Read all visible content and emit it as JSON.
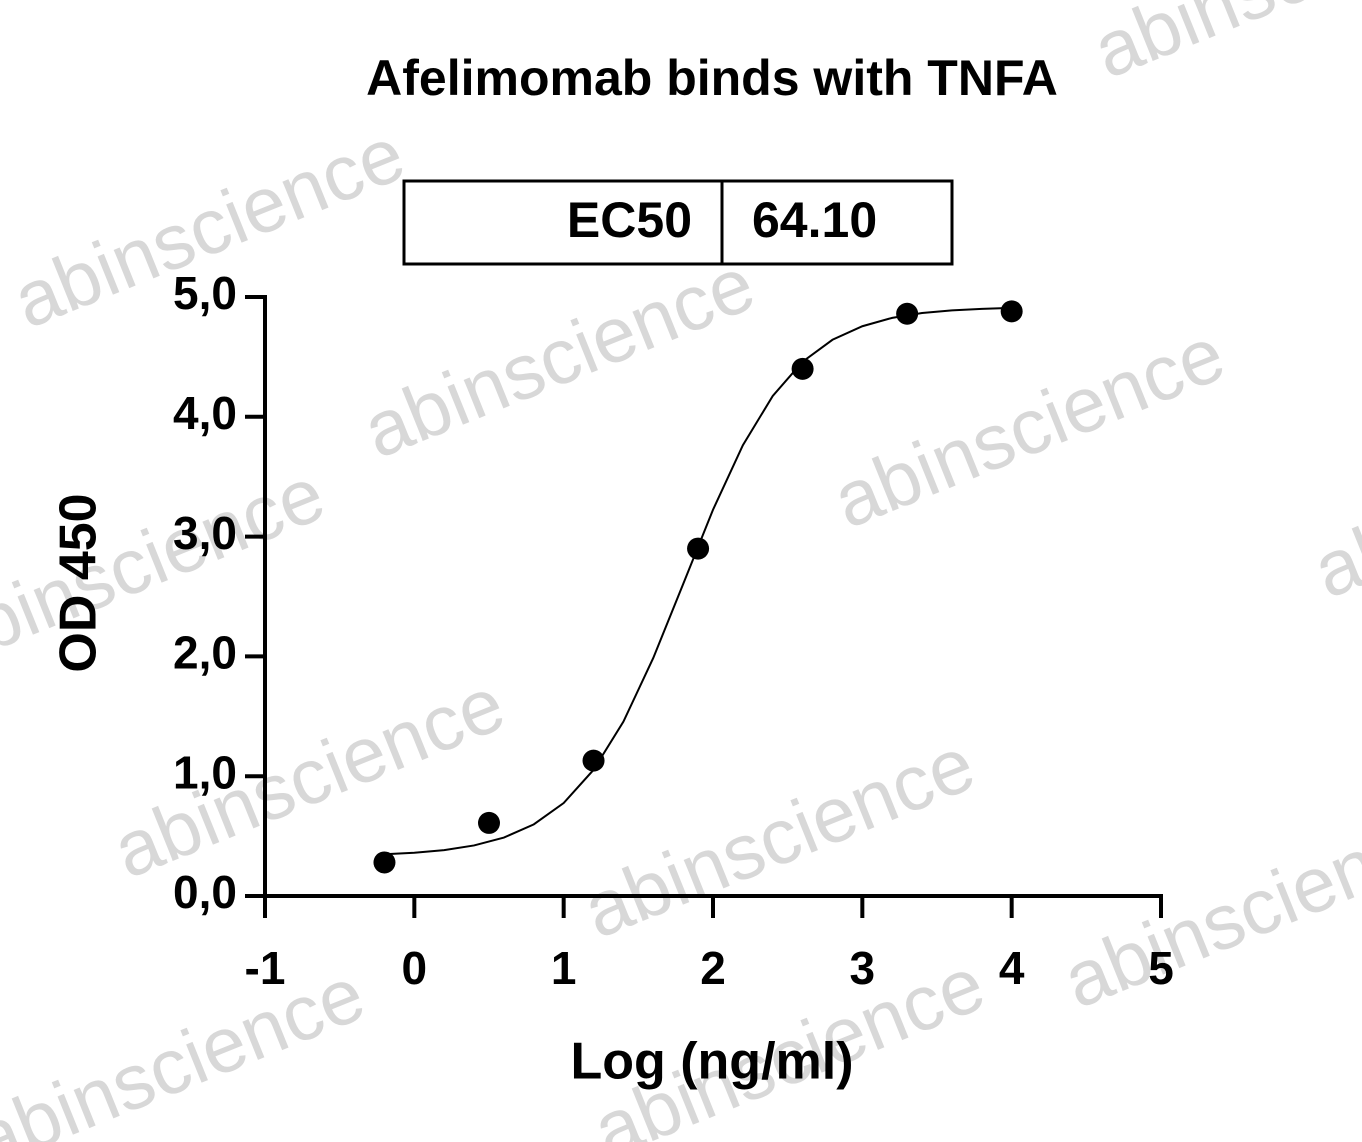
{
  "chart_data": {
    "type": "scatter",
    "title": "Afelimomab binds with TNFA",
    "xlabel": "Log (ng/ml)",
    "ylabel": "OD 450",
    "ec50_table": {
      "label": "EC50",
      "value": "64.10"
    },
    "watermark": "abinscience",
    "xlim": [
      -1,
      5
    ],
    "ylim": [
      0,
      5
    ],
    "xticks": [
      -1,
      0,
      1,
      2,
      3,
      4,
      5
    ],
    "yticks": [
      {
        "value": 0,
        "label": "0,0"
      },
      {
        "value": 1,
        "label": "1,0"
      },
      {
        "value": 2,
        "label": "2,0"
      },
      {
        "value": 3,
        "label": "3,0"
      },
      {
        "value": 4,
        "label": "4,0"
      },
      {
        "value": 5,
        "label": "5,0"
      }
    ],
    "color": "#000000",
    "points": {
      "x": [
        -0.2,
        0.5,
        1.2,
        1.9,
        2.6,
        3.3,
        4.0
      ],
      "values": [
        0.28,
        0.61,
        1.13,
        2.9,
        4.4,
        4.86,
        4.88
      ]
    },
    "fit": {
      "x": [
        -0.2,
        0.0,
        0.2,
        0.4,
        0.6,
        0.8,
        1.0,
        1.2,
        1.4,
        1.6,
        1.8,
        2.0,
        2.2,
        2.4,
        2.6,
        2.8,
        3.0,
        3.2,
        3.4,
        3.6,
        3.8,
        4.0
      ],
      "values": [
        0.348,
        0.361,
        0.383,
        0.422,
        0.488,
        0.598,
        0.776,
        1.053,
        1.455,
        1.987,
        2.603,
        3.224,
        3.763,
        4.174,
        4.46,
        4.643,
        4.756,
        4.826,
        4.866,
        4.888,
        4.901,
        4.909
      ]
    }
  }
}
